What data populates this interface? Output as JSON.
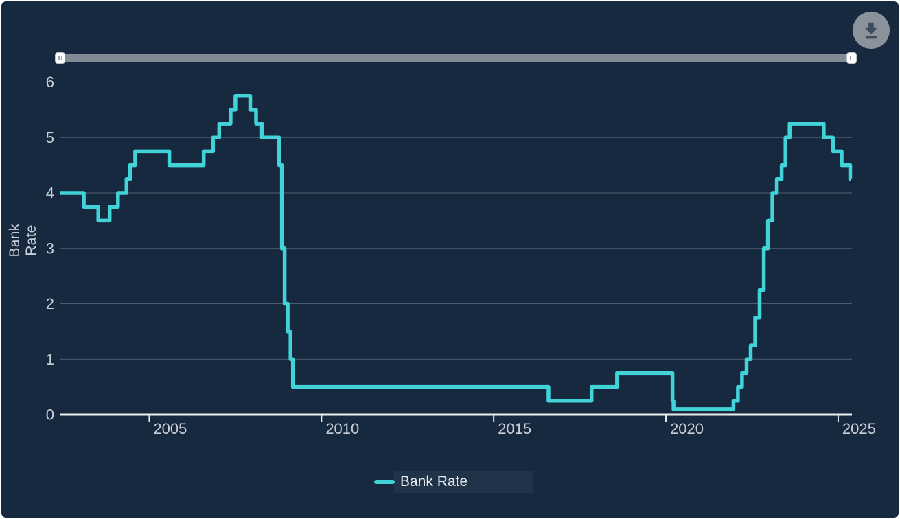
{
  "toolbar": {
    "download_button": {
      "icon": "download-icon",
      "label": ""
    }
  },
  "range_selector": {
    "type": "horizontal-range-slider",
    "left_handle_position": "min",
    "right_handle_position": "max",
    "track_color": "#838b96"
  },
  "colors": {
    "background": "#16293f",
    "line": "#41d3d8",
    "grid": "#4e5e72",
    "axis": "#eceef1",
    "tick_text": "#c9cfd7",
    "button": "#8b929b",
    "button_icon": "#3e4b5b"
  },
  "legend": {
    "items": [
      {
        "label": "Bank Rate",
        "color": "#41d3d8"
      }
    ],
    "position": "bottom-center"
  },
  "chart_data": {
    "type": "line",
    "step": true,
    "title": "",
    "xlabel": "",
    "ylabel": "Bank Rate",
    "grid": true,
    "legend_position": "bottom",
    "xlim": [
      2002.42,
      2025.38
    ],
    "ylim": [
      0,
      6
    ],
    "x_ticks": [
      2005,
      2010,
      2015,
      2020,
      2025
    ],
    "y_ticks": [
      0,
      1,
      2,
      3,
      4,
      5,
      6
    ],
    "series": [
      {
        "name": "Bank Rate",
        "color": "#41d3d8",
        "end_x": 2025.38,
        "points": [
          [
            2002.42,
            4.0
          ],
          [
            2003.1,
            3.75
          ],
          [
            2003.52,
            3.5
          ],
          [
            2003.85,
            3.75
          ],
          [
            2004.09,
            4.0
          ],
          [
            2004.34,
            4.25
          ],
          [
            2004.44,
            4.5
          ],
          [
            2004.59,
            4.75
          ],
          [
            2005.58,
            4.5
          ],
          [
            2006.58,
            4.75
          ],
          [
            2006.85,
            5.0
          ],
          [
            2007.03,
            5.25
          ],
          [
            2007.36,
            5.5
          ],
          [
            2007.5,
            5.75
          ],
          [
            2007.93,
            5.5
          ],
          [
            2008.1,
            5.25
          ],
          [
            2008.27,
            5.0
          ],
          [
            2008.77,
            4.5
          ],
          [
            2008.85,
            3.0
          ],
          [
            2008.93,
            2.0
          ],
          [
            2009.02,
            1.5
          ],
          [
            2009.1,
            1.0
          ],
          [
            2009.17,
            0.5
          ],
          [
            2016.59,
            0.25
          ],
          [
            2017.84,
            0.5
          ],
          [
            2018.58,
            0.75
          ],
          [
            2020.19,
            0.25
          ],
          [
            2020.22,
            0.1
          ],
          [
            2021.96,
            0.25
          ],
          [
            2022.09,
            0.5
          ],
          [
            2022.21,
            0.75
          ],
          [
            2022.34,
            1.0
          ],
          [
            2022.46,
            1.25
          ],
          [
            2022.59,
            1.75
          ],
          [
            2022.72,
            2.25
          ],
          [
            2022.84,
            3.0
          ],
          [
            2022.96,
            3.5
          ],
          [
            2023.09,
            4.0
          ],
          [
            2023.22,
            4.25
          ],
          [
            2023.36,
            4.5
          ],
          [
            2023.47,
            5.0
          ],
          [
            2023.59,
            5.25
          ],
          [
            2024.58,
            5.0
          ],
          [
            2024.85,
            4.75
          ],
          [
            2025.1,
            4.5
          ],
          [
            2025.35,
            4.25
          ]
        ]
      }
    ]
  }
}
